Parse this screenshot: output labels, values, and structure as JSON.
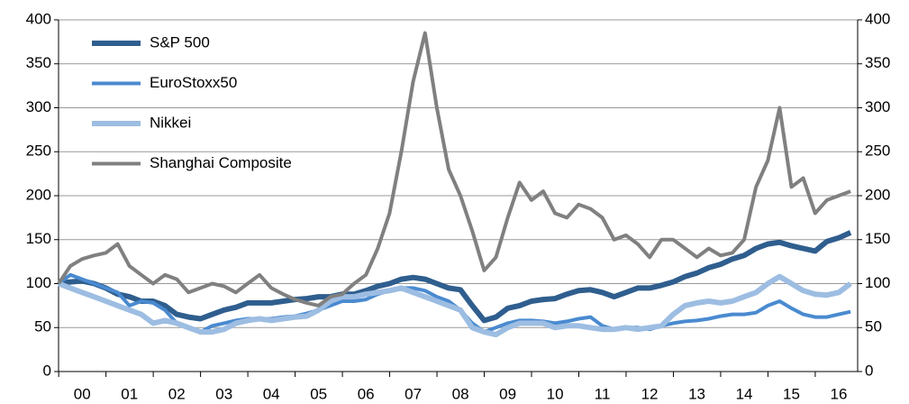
{
  "chart_data": {
    "type": "line",
    "x": [
      0,
      0.25,
      0.5,
      0.75,
      1,
      1.25,
      1.5,
      1.75,
      2,
      2.25,
      2.5,
      2.75,
      3,
      3.25,
      3.5,
      3.75,
      4,
      4.25,
      4.5,
      4.75,
      5,
      5.25,
      5.5,
      5.75,
      6,
      6.25,
      6.5,
      6.75,
      7,
      7.25,
      7.5,
      7.75,
      8,
      8.25,
      8.5,
      8.75,
      9,
      9.25,
      9.5,
      9.75,
      10,
      10.25,
      10.5,
      10.75,
      11,
      11.25,
      11.5,
      11.75,
      12,
      12.25,
      12.5,
      12.75,
      13,
      13.25,
      13.5,
      13.75,
      14,
      14.25,
      14.5,
      14.75,
      15,
      15.25,
      15.5,
      15.75,
      16,
      16.25,
      16.5,
      16.75
    ],
    "series": [
      {
        "name": "S&P 500",
        "color": "#2f5e8e",
        "values": [
          100,
          102,
          103,
          100,
          95,
          88,
          85,
          80,
          80,
          75,
          65,
          62,
          60,
          65,
          70,
          73,
          78,
          78,
          78,
          80,
          82,
          83,
          85,
          85,
          88,
          88,
          92,
          97,
          100,
          105,
          107,
          105,
          100,
          95,
          93,
          75,
          58,
          62,
          72,
          75,
          80,
          82,
          83,
          88,
          92,
          93,
          90,
          85,
          90,
          95,
          95,
          98,
          102,
          108,
          112,
          118,
          122,
          128,
          132,
          140,
          145,
          147,
          143,
          140,
          137,
          148,
          152,
          158
        ]
      },
      {
        "name": "EuroStoxx50",
        "color": "#4a8ad0",
        "values": [
          100,
          110,
          105,
          100,
          95,
          90,
          75,
          80,
          78,
          70,
          55,
          50,
          45,
          52,
          55,
          58,
          60,
          60,
          60,
          62,
          63,
          66,
          70,
          75,
          80,
          80,
          82,
          88,
          92,
          95,
          95,
          92,
          85,
          80,
          70,
          55,
          45,
          50,
          55,
          58,
          58,
          57,
          55,
          57,
          60,
          62,
          52,
          48,
          50,
          50,
          48,
          52,
          55,
          57,
          58,
          60,
          63,
          65,
          65,
          67,
          75,
          80,
          72,
          65,
          62,
          62,
          65,
          68
        ]
      },
      {
        "name": "Nikkei",
        "color": "#9dbde2",
        "values": [
          100,
          95,
          90,
          85,
          80,
          75,
          70,
          65,
          55,
          58,
          55,
          50,
          45,
          45,
          48,
          55,
          58,
          60,
          58,
          60,
          62,
          63,
          70,
          80,
          85,
          85,
          88,
          90,
          92,
          95,
          90,
          85,
          80,
          75,
          70,
          50,
          45,
          42,
          50,
          55,
          55,
          55,
          50,
          52,
          52,
          50,
          48,
          48,
          50,
          48,
          50,
          52,
          65,
          75,
          78,
          80,
          78,
          80,
          85,
          90,
          100,
          108,
          100,
          92,
          88,
          87,
          90,
          100
        ]
      },
      {
        "name": "Shanghai Composite",
        "color": "#808080",
        "values": [
          100,
          120,
          128,
          132,
          135,
          145,
          120,
          110,
          100,
          110,
          105,
          90,
          95,
          100,
          97,
          90,
          100,
          110,
          95,
          88,
          82,
          78,
          75,
          85,
          88,
          100,
          110,
          140,
          180,
          250,
          330,
          385,
          300,
          230,
          200,
          160,
          115,
          130,
          175,
          215,
          195,
          205,
          180,
          175,
          190,
          185,
          175,
          150,
          155,
          145,
          130,
          150,
          150,
          140,
          130,
          140,
          132,
          135,
          150,
          210,
          240,
          300,
          210,
          220,
          180,
          195,
          200,
          205
        ]
      }
    ],
    "xlim": [
      0,
      16.9
    ],
    "xticks": [
      {
        "value": 0.5,
        "label": "00"
      },
      {
        "value": 1.5,
        "label": "01"
      },
      {
        "value": 2.5,
        "label": "02"
      },
      {
        "value": 3.5,
        "label": "03"
      },
      {
        "value": 4.5,
        "label": "04"
      },
      {
        "value": 5.5,
        "label": "05"
      },
      {
        "value": 6.5,
        "label": "06"
      },
      {
        "value": 7.5,
        "label": "07"
      },
      {
        "value": 8.5,
        "label": "08"
      },
      {
        "value": 9.5,
        "label": "09"
      },
      {
        "value": 10.5,
        "label": "10"
      },
      {
        "value": 11.5,
        "label": "11"
      },
      {
        "value": 12.5,
        "label": "12"
      },
      {
        "value": 13.5,
        "label": "13"
      },
      {
        "value": 14.5,
        "label": "14"
      },
      {
        "value": 15.5,
        "label": "15"
      },
      {
        "value": 16.5,
        "label": "16"
      }
    ],
    "ylim": [
      0,
      400
    ],
    "yticks": [
      0,
      50,
      100,
      150,
      200,
      250,
      300,
      350,
      400
    ],
    "y2lim": [
      0,
      400
    ],
    "y2ticks": [
      0,
      50,
      100,
      150,
      200,
      250,
      300,
      350,
      400
    ],
    "grid": true,
    "legend": "upper left"
  }
}
